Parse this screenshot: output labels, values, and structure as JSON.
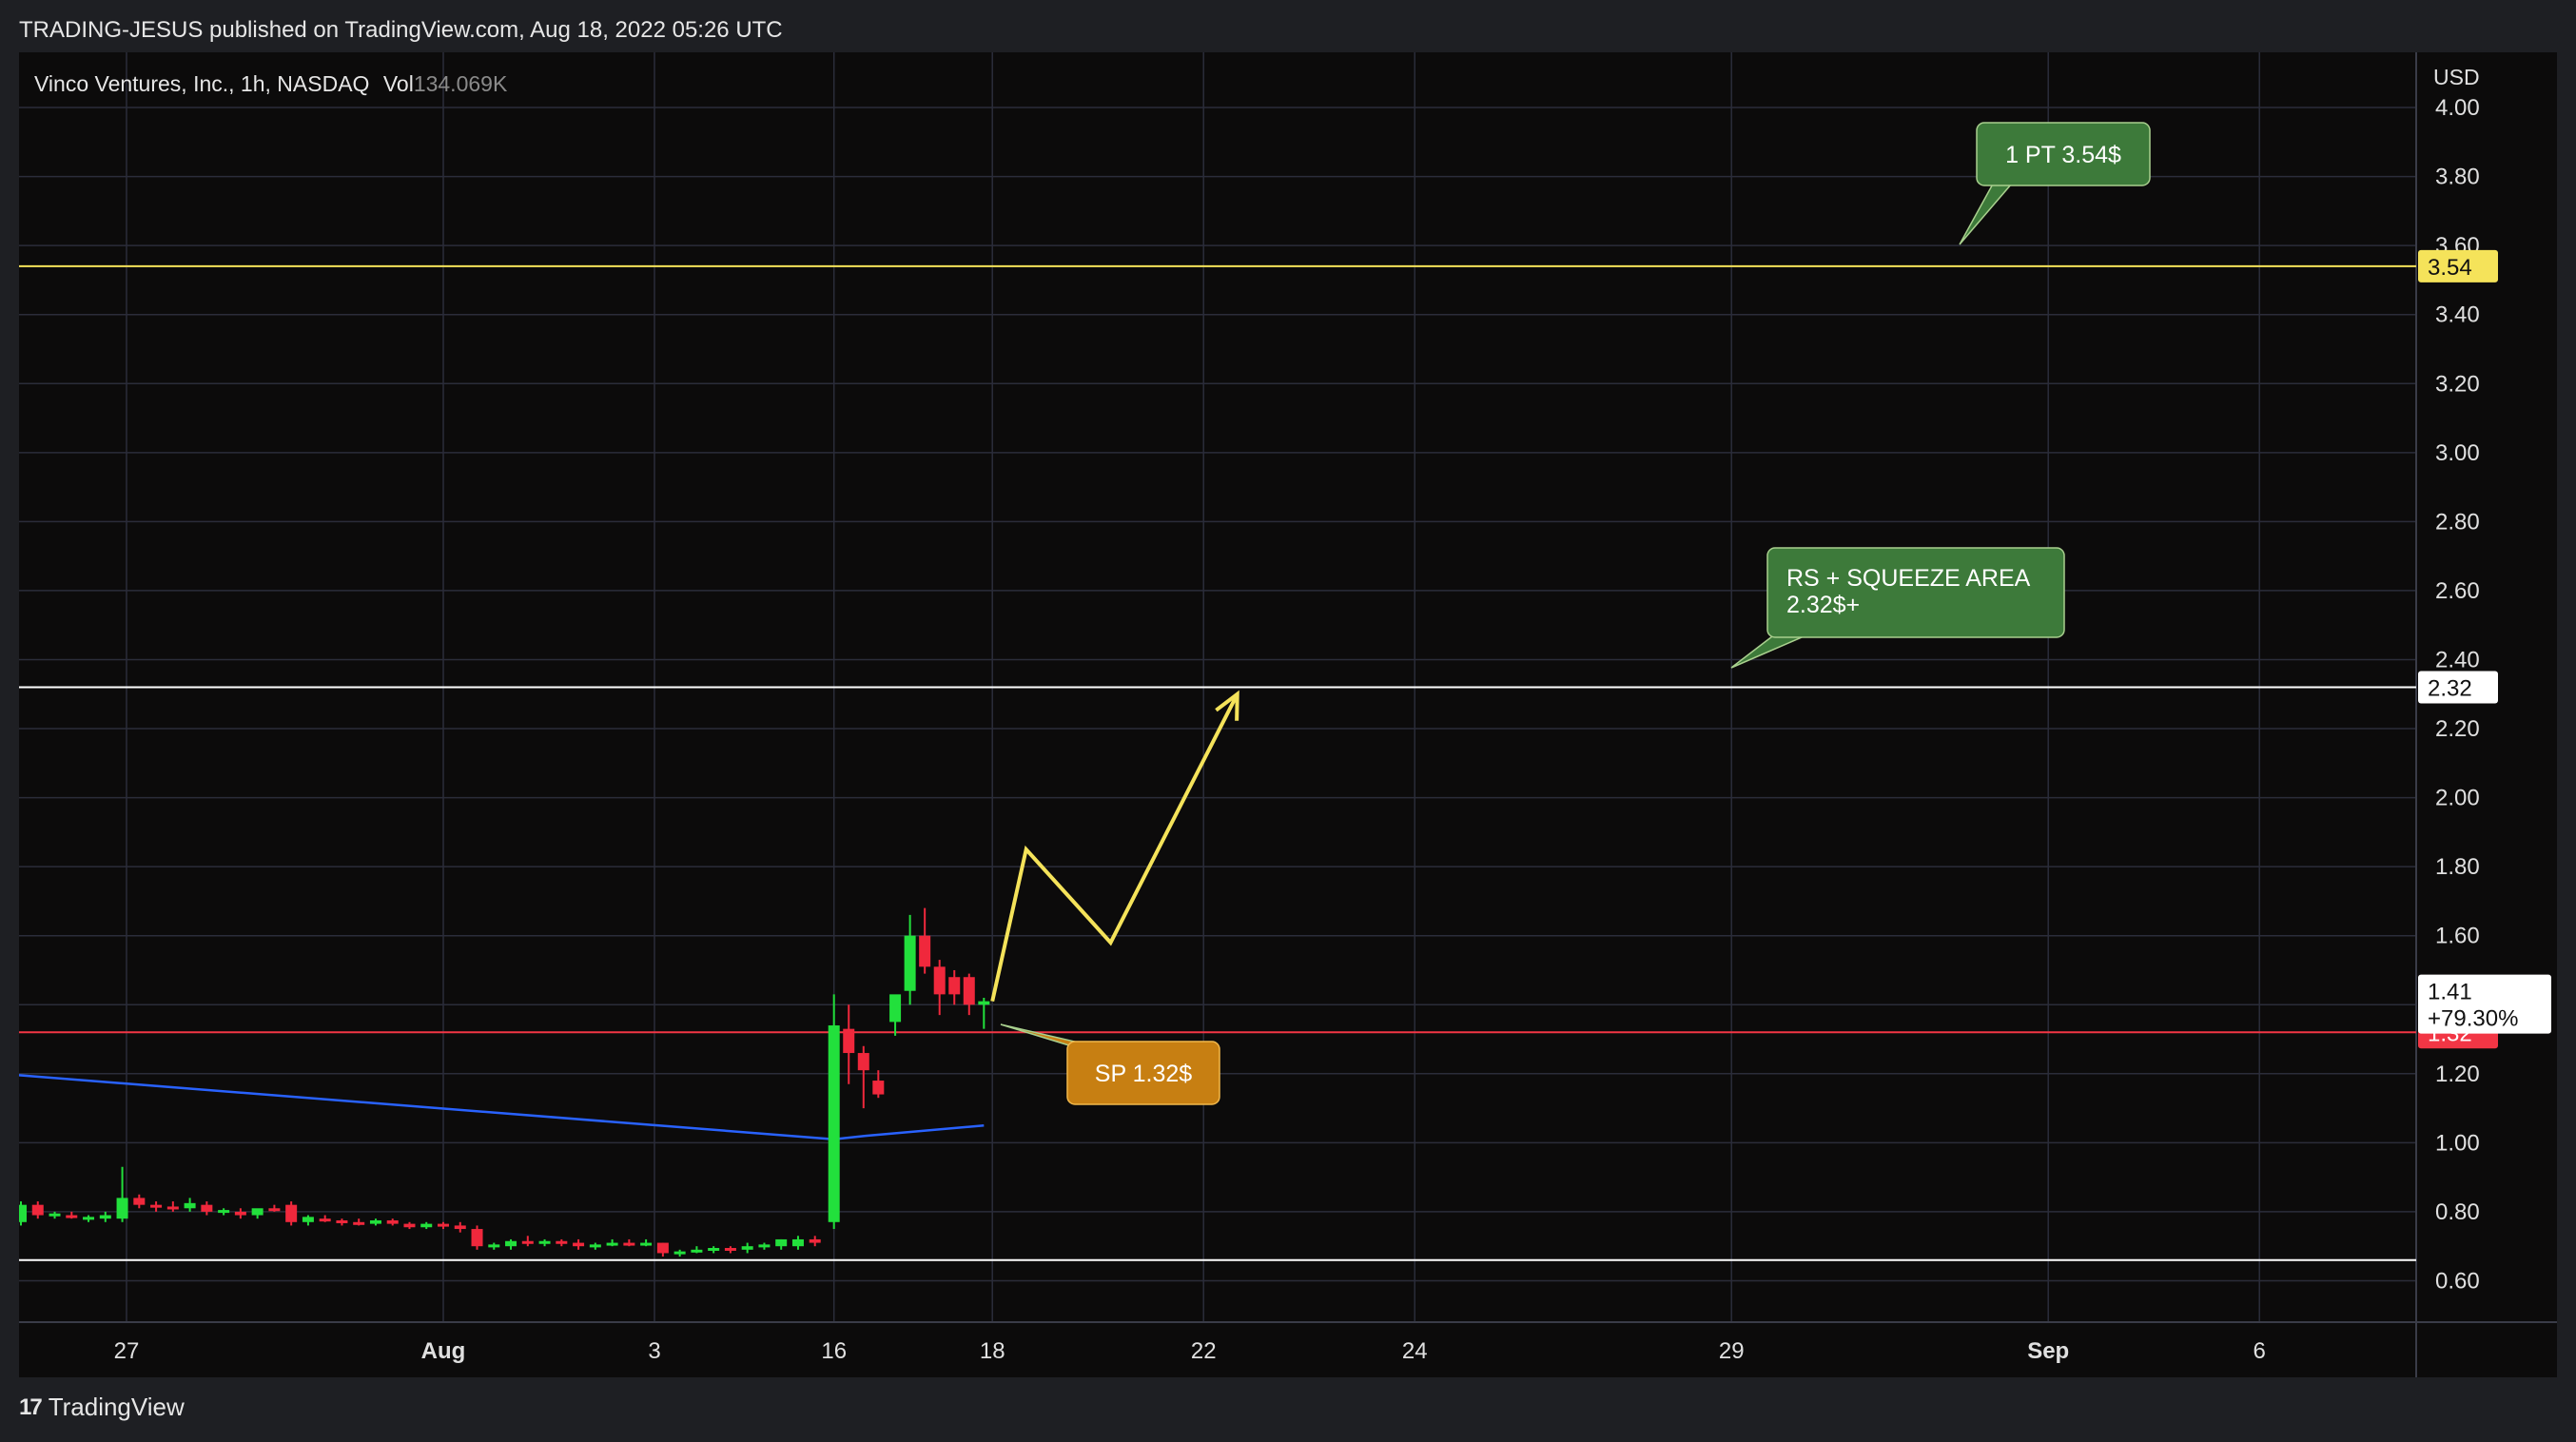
{
  "header": {
    "published_line": "TRADING-JESUS published on TradingView.com, Aug 18, 2022 05:26 UTC"
  },
  "symbol": {
    "name": "Vinco Ventures, Inc., 1h, NASDAQ",
    "vol_label": "Vol",
    "vol_value": "134.069K"
  },
  "footer": {
    "brand": "TradingView",
    "logo_glyph": "17"
  },
  "colors": {
    "background": "#0c0b0b",
    "grid": "#2b2d3a",
    "up": "#22e03c",
    "down": "#f0283c",
    "yellow": "#f5e35a",
    "white_line": "#ffffff",
    "red_line": "#f23645",
    "blue_line": "#2962ff",
    "callout_green": "#3d7a3a",
    "callout_orange": "#c77f12"
  },
  "chart_data": {
    "type": "candlestick",
    "currency": "USD",
    "ylim": [
      0.48,
      4.16
    ],
    "y_ticks": [
      "4.00",
      "3.80",
      "3.60",
      "3.40",
      "3.20",
      "3.00",
      "2.80",
      "2.60",
      "2.40",
      "2.20",
      "2.00",
      "1.80",
      "1.60",
      "1.40",
      "1.20",
      "1.00",
      "0.80",
      "0.60"
    ],
    "x_ticks": [
      {
        "label": "27",
        "bold": false
      },
      {
        "label": "Aug",
        "bold": true
      },
      {
        "label": "3",
        "bold": false
      },
      {
        "label": "16",
        "bold": false
      },
      {
        "label": "18",
        "bold": false
      },
      {
        "label": "22",
        "bold": false
      },
      {
        "label": "24",
        "bold": false
      },
      {
        "label": "29",
        "bold": false
      },
      {
        "label": "Sep",
        "bold": true
      },
      {
        "label": "6",
        "bold": false
      }
    ],
    "x_tick_slots": [
      5,
      20,
      30,
      38.5,
      46,
      56,
      66,
      81,
      96,
      106
    ],
    "candles": [
      {
        "t": 0.0,
        "o": 0.77,
        "h": 0.83,
        "l": 0.76,
        "c": 0.82
      },
      {
        "t": 0.8,
        "o": 0.82,
        "h": 0.83,
        "l": 0.78,
        "c": 0.79
      },
      {
        "t": 1.6,
        "o": 0.79,
        "h": 0.8,
        "l": 0.78,
        "c": 0.795
      },
      {
        "t": 2.4,
        "o": 0.79,
        "h": 0.8,
        "l": 0.78,
        "c": 0.785
      },
      {
        "t": 3.2,
        "o": 0.78,
        "h": 0.79,
        "l": 0.77,
        "c": 0.785
      },
      {
        "t": 4.0,
        "o": 0.78,
        "h": 0.8,
        "l": 0.77,
        "c": 0.79
      },
      {
        "t": 4.8,
        "o": 0.78,
        "h": 0.93,
        "l": 0.77,
        "c": 0.84
      },
      {
        "t": 5.6,
        "o": 0.84,
        "h": 0.85,
        "l": 0.81,
        "c": 0.82
      },
      {
        "t": 6.4,
        "o": 0.82,
        "h": 0.83,
        "l": 0.8,
        "c": 0.815
      },
      {
        "t": 7.2,
        "o": 0.815,
        "h": 0.83,
        "l": 0.8,
        "c": 0.81
      },
      {
        "t": 8.0,
        "o": 0.81,
        "h": 0.84,
        "l": 0.8,
        "c": 0.825
      },
      {
        "t": 8.8,
        "o": 0.82,
        "h": 0.83,
        "l": 0.79,
        "c": 0.8
      },
      {
        "t": 9.6,
        "o": 0.8,
        "h": 0.81,
        "l": 0.79,
        "c": 0.805
      },
      {
        "t": 10.4,
        "o": 0.8,
        "h": 0.81,
        "l": 0.78,
        "c": 0.79
      },
      {
        "t": 11.2,
        "o": 0.79,
        "h": 0.8,
        "l": 0.78,
        "c": 0.81
      },
      {
        "t": 12.0,
        "o": 0.81,
        "h": 0.82,
        "l": 0.8,
        "c": 0.805
      },
      {
        "t": 12.8,
        "o": 0.82,
        "h": 0.83,
        "l": 0.76,
        "c": 0.77
      },
      {
        "t": 13.6,
        "o": 0.77,
        "h": 0.79,
        "l": 0.76,
        "c": 0.785
      },
      {
        "t": 14.4,
        "o": 0.78,
        "h": 0.79,
        "l": 0.77,
        "c": 0.775
      },
      {
        "t": 15.2,
        "o": 0.775,
        "h": 0.78,
        "l": 0.76,
        "c": 0.77
      },
      {
        "t": 16.0,
        "o": 0.77,
        "h": 0.78,
        "l": 0.76,
        "c": 0.765
      },
      {
        "t": 16.8,
        "o": 0.765,
        "h": 0.78,
        "l": 0.76,
        "c": 0.775
      },
      {
        "t": 17.6,
        "o": 0.775,
        "h": 0.78,
        "l": 0.76,
        "c": 0.765
      },
      {
        "t": 18.4,
        "o": 0.765,
        "h": 0.77,
        "l": 0.75,
        "c": 0.755
      },
      {
        "t": 19.2,
        "o": 0.755,
        "h": 0.77,
        "l": 0.75,
        "c": 0.765
      },
      {
        "t": 20.0,
        "o": 0.765,
        "h": 0.77,
        "l": 0.75,
        "c": 0.76
      },
      {
        "t": 20.8,
        "o": 0.76,
        "h": 0.77,
        "l": 0.74,
        "c": 0.75
      },
      {
        "t": 21.6,
        "o": 0.75,
        "h": 0.76,
        "l": 0.69,
        "c": 0.7
      },
      {
        "t": 22.4,
        "o": 0.7,
        "h": 0.71,
        "l": 0.69,
        "c": 0.705
      },
      {
        "t": 23.2,
        "o": 0.7,
        "h": 0.72,
        "l": 0.69,
        "c": 0.715
      },
      {
        "t": 24.0,
        "o": 0.715,
        "h": 0.73,
        "l": 0.7,
        "c": 0.71
      },
      {
        "t": 24.8,
        "o": 0.71,
        "h": 0.72,
        "l": 0.7,
        "c": 0.715
      },
      {
        "t": 25.6,
        "o": 0.715,
        "h": 0.72,
        "l": 0.7,
        "c": 0.71
      },
      {
        "t": 26.4,
        "o": 0.71,
        "h": 0.72,
        "l": 0.69,
        "c": 0.7
      },
      {
        "t": 27.2,
        "o": 0.7,
        "h": 0.71,
        "l": 0.69,
        "c": 0.705
      },
      {
        "t": 28.0,
        "o": 0.705,
        "h": 0.72,
        "l": 0.7,
        "c": 0.71
      },
      {
        "t": 28.8,
        "o": 0.71,
        "h": 0.72,
        "l": 0.7,
        "c": 0.705
      },
      {
        "t": 29.6,
        "o": 0.705,
        "h": 0.72,
        "l": 0.7,
        "c": 0.71
      },
      {
        "t": 30.4,
        "o": 0.71,
        "h": 0.71,
        "l": 0.67,
        "c": 0.68
      },
      {
        "t": 31.2,
        "o": 0.68,
        "h": 0.69,
        "l": 0.67,
        "c": 0.685
      },
      {
        "t": 32.0,
        "o": 0.685,
        "h": 0.7,
        "l": 0.68,
        "c": 0.69
      },
      {
        "t": 32.8,
        "o": 0.69,
        "h": 0.7,
        "l": 0.68,
        "c": 0.695
      },
      {
        "t": 33.6,
        "o": 0.695,
        "h": 0.7,
        "l": 0.68,
        "c": 0.69
      },
      {
        "t": 34.4,
        "o": 0.69,
        "h": 0.71,
        "l": 0.68,
        "c": 0.7
      },
      {
        "t": 35.2,
        "o": 0.7,
        "h": 0.71,
        "l": 0.69,
        "c": 0.705
      },
      {
        "t": 36.0,
        "o": 0.7,
        "h": 0.72,
        "l": 0.69,
        "c": 0.72
      },
      {
        "t": 36.8,
        "o": 0.7,
        "h": 0.73,
        "l": 0.69,
        "c": 0.72
      },
      {
        "t": 37.6,
        "o": 0.72,
        "h": 0.73,
        "l": 0.7,
        "c": 0.71
      },
      {
        "t": 38.5,
        "o": 0.77,
        "h": 1.43,
        "l": 0.75,
        "c": 1.34
      },
      {
        "t": 39.2,
        "o": 1.33,
        "h": 1.4,
        "l": 1.17,
        "c": 1.26
      },
      {
        "t": 39.9,
        "o": 1.26,
        "h": 1.28,
        "l": 1.1,
        "c": 1.21
      },
      {
        "t": 40.6,
        "o": 1.18,
        "h": 1.21,
        "l": 1.13,
        "c": 1.14
      },
      {
        "t": 41.4,
        "o": 1.35,
        "h": 1.42,
        "l": 1.31,
        "c": 1.43
      },
      {
        "t": 42.1,
        "o": 1.44,
        "h": 1.66,
        "l": 1.4,
        "c": 1.6
      },
      {
        "t": 42.8,
        "o": 1.6,
        "h": 1.68,
        "l": 1.49,
        "c": 1.51
      },
      {
        "t": 43.5,
        "o": 1.51,
        "h": 1.53,
        "l": 1.37,
        "c": 1.43
      },
      {
        "t": 44.2,
        "o": 1.48,
        "h": 1.5,
        "l": 1.4,
        "c": 1.43
      },
      {
        "t": 44.9,
        "o": 1.48,
        "h": 1.49,
        "l": 1.37,
        "c": 1.4
      },
      {
        "t": 45.6,
        "o": 1.4,
        "h": 1.42,
        "l": 1.33,
        "c": 1.41
      }
    ],
    "horizontal_lines": [
      {
        "y": 3.54,
        "color": "yellow",
        "label": "3.54"
      },
      {
        "y": 2.32,
        "color": "white_line",
        "label": "2.32"
      },
      {
        "y": 1.32,
        "color": "red_line",
        "label": "1.32"
      },
      {
        "y": 0.66,
        "color": "white_line",
        "label": ""
      }
    ],
    "last_price": {
      "value": "1.41",
      "change": "+79.30%"
    },
    "moving_average": [
      [
        -1,
        1.2
      ],
      [
        38.5,
        1.01
      ],
      [
        40,
        1.02
      ],
      [
        45.6,
        1.05
      ]
    ],
    "projection": [
      [
        46.0,
        1.41
      ],
      [
        47.6,
        1.85
      ],
      [
        51.6,
        1.58
      ],
      [
        57.6,
        2.3
      ]
    ],
    "callouts": [
      {
        "text": [
          "1 PT 3.54$"
        ],
        "anchor_slot": 90,
        "anchor_y": 3.57,
        "color": "callout_green"
      },
      {
        "text": [
          "RS + SQUEEZE AREA",
          "2.32$+"
        ],
        "anchor_slot": 81,
        "anchor_y": 2.37,
        "color": "callout_green"
      },
      {
        "text": [
          "SP 1.32$"
        ],
        "anchor_slot": 46.4,
        "anchor_y": 1.31,
        "color": "callout_orange"
      }
    ]
  }
}
